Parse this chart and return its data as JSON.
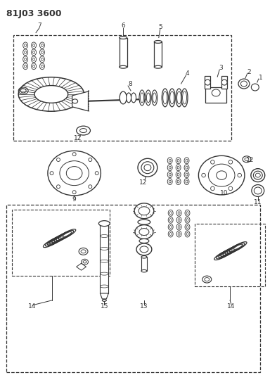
{
  "title": "81J03 3600",
  "bg_color": "#ffffff",
  "line_color": "#333333",
  "title_fontsize": 9,
  "fig_width": 3.94,
  "fig_height": 5.33,
  "dpi": 100
}
